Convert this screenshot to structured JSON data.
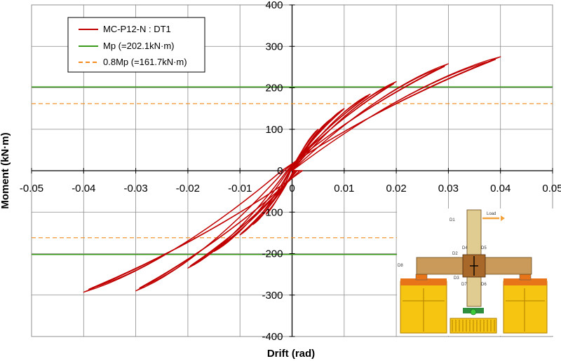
{
  "chart_data": {
    "type": "line",
    "title": "",
    "xlabel": "Drift (rad)",
    "ylabel": "Moment (kN·m)",
    "xlim": [
      -0.05,
      0.05
    ],
    "ylim": [
      -400,
      400
    ],
    "x_ticks": [
      -0.05,
      -0.04,
      -0.03,
      -0.02,
      -0.01,
      0,
      0.01,
      0.02,
      0.03,
      0.04,
      0.05
    ],
    "x_tick_labels": [
      "-0.05",
      "-0.04",
      "-0.03",
      "-0.02",
      "-0.01",
      "0",
      "0.01",
      "0.02",
      "0.03",
      "0.04",
      "0.05"
    ],
    "y_ticks": [
      -400,
      -300,
      -200,
      -100,
      0,
      100,
      200,
      300,
      400
    ],
    "y_tick_labels": [
      "-400",
      "-300",
      "-200",
      "-100",
      "0",
      "100",
      "200",
      "300",
      "400"
    ],
    "grid": true,
    "legend_position": "top-left",
    "series": [
      {
        "name": "MC-P12-N : DT1",
        "color": "#c00000",
        "style": "solid",
        "loops": [
          {
            "amp": 0.005,
            "mpos": 100,
            "mneg": -105
          },
          {
            "amp": 0.0075,
            "mpos": 125,
            "mneg": -130
          },
          {
            "amp": 0.01,
            "mpos": 150,
            "mneg": -155
          },
          {
            "amp": 0.015,
            "mpos": 185,
            "mneg": -195
          },
          {
            "amp": 0.02,
            "mpos": 215,
            "mneg": -235
          },
          {
            "amp": 0.03,
            "mpos": 258,
            "mneg": -290
          },
          {
            "amp": 0.04,
            "mpos": 275,
            "mneg": -293
          }
        ]
      },
      {
        "name": "Mp (=202.1kN·m)",
        "color": "#3a9a1a",
        "style": "solid",
        "value": 202.1
      },
      {
        "name": "0.8Mp (=161.7kN·m)",
        "color": "#f28a1c",
        "style": "dashed",
        "value": 161.7
      }
    ],
    "inset_labels": [
      "Load",
      "D1",
      "D2",
      "D3",
      "D4",
      "D5",
      "D6",
      "D7",
      "D8"
    ]
  }
}
